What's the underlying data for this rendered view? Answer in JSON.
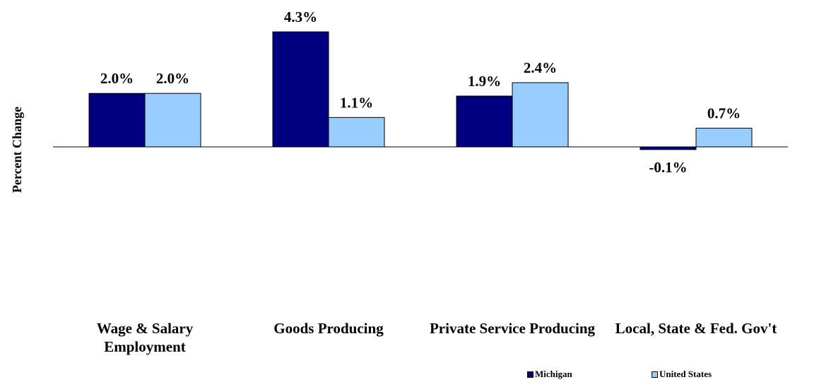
{
  "chart_data": {
    "type": "bar",
    "y_label": "Percent Change",
    "categories": [
      "Wage & Salary Employment",
      "Goods Producing",
      "Private Service Producing",
      "Local, State & Fed. Gov't"
    ],
    "series": [
      {
        "name": "Michigan",
        "color": "#000080",
        "values": [
          2.0,
          4.3,
          1.9,
          -0.1
        ],
        "value_labels": [
          "2.0%",
          "4.3%",
          "1.9%",
          "-0.1%"
        ]
      },
      {
        "name": "United States",
        "color": "#99ccff",
        "values": [
          2.0,
          1.1,
          2.4,
          0.7
        ],
        "value_labels": [
          "2.0%",
          "1.1%",
          "2.4%",
          "0.7%"
        ]
      }
    ],
    "ylim": [
      -5,
      4.5
    ],
    "legend": "bottom"
  }
}
